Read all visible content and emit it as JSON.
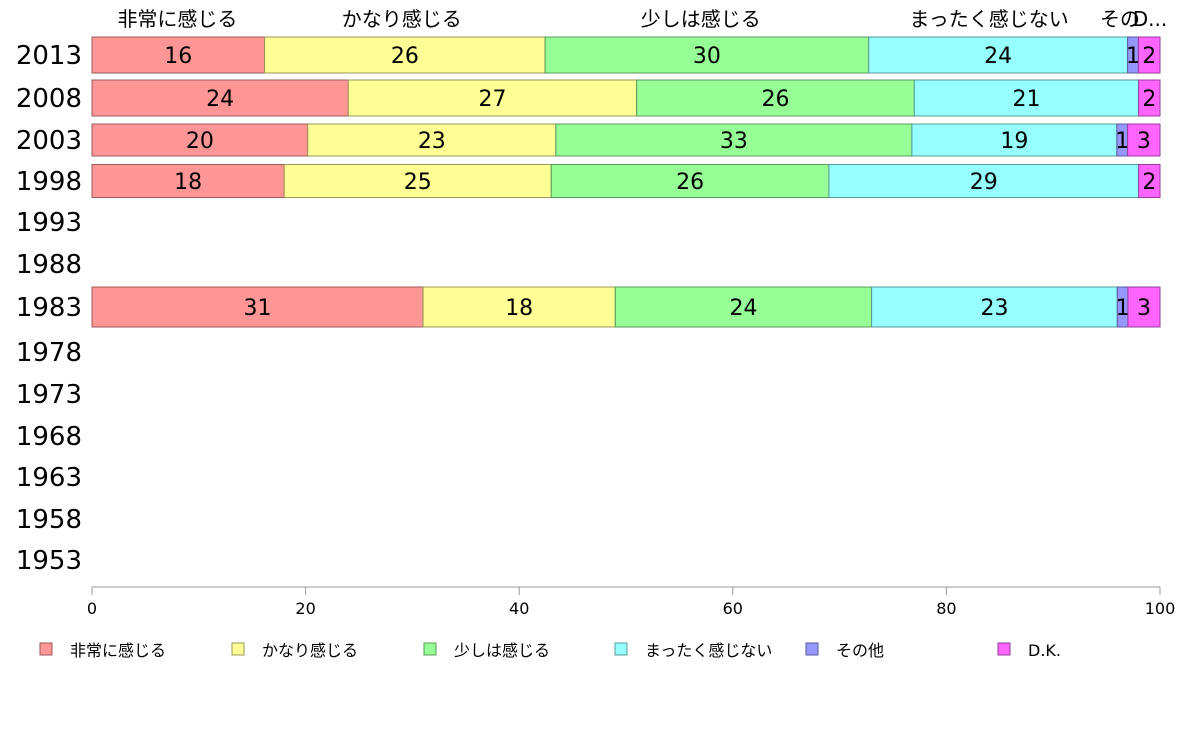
{
  "chart_data": {
    "type": "bar",
    "orientation": "horizontal",
    "stacked": true,
    "categories": [
      "2013",
      "2008",
      "2003",
      "1998",
      "1993",
      "1988",
      "1983",
      "1978",
      "1973",
      "1968",
      "1963",
      "1958",
      "1953"
    ],
    "series": [
      {
        "name": "非常に感じる",
        "top_label": "非常に感じる",
        "color": "#FF9696",
        "values": [
          16,
          24,
          20,
          18,
          null,
          null,
          31,
          null,
          null,
          null,
          null,
          null,
          null
        ]
      },
      {
        "name": "かなり感じる",
        "top_label": "かなり感じる",
        "color": "#FFFF96",
        "values": [
          26,
          27,
          23,
          25,
          null,
          null,
          18,
          null,
          null,
          null,
          null,
          null,
          null
        ]
      },
      {
        "name": "少しは感じる",
        "top_label": "少しは感じる",
        "color": "#96FF96",
        "values": [
          30,
          26,
          33,
          26,
          null,
          null,
          24,
          null,
          null,
          null,
          null,
          null,
          null
        ]
      },
      {
        "name": "まったく感じない",
        "top_label": "まったく感じない",
        "color": "#96FFFF",
        "values": [
          24,
          21,
          19,
          29,
          null,
          null,
          23,
          null,
          null,
          null,
          null,
          null,
          null
        ]
      },
      {
        "name": "その他",
        "top_label": "その",
        "color": "#9696FF",
        "values": [
          1,
          0,
          1,
          0,
          null,
          null,
          1,
          null,
          null,
          null,
          null,
          null,
          null
        ]
      },
      {
        "name": "D.K.",
        "top_label": "D...",
        "color": "#FF64FF",
        "values": [
          2,
          2,
          3,
          2,
          null,
          null,
          3,
          null,
          null,
          null,
          null,
          null,
          null
        ]
      }
    ],
    "xlim": [
      0,
      100
    ],
    "xticks": [
      0,
      20,
      40,
      60,
      80,
      100
    ],
    "grid": false,
    "legend_position": "bottom"
  }
}
